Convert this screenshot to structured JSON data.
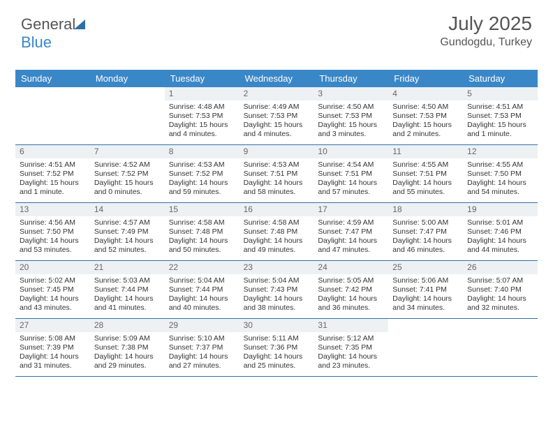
{
  "logo": {
    "text1": "General",
    "text2": "Blue"
  },
  "title": "July 2025",
  "location": "Gundogdu, Turkey",
  "colors": {
    "header_bg": "#3a87c8",
    "header_text": "#ffffff",
    "daynum_bg": "#eef1f3",
    "daynum_text": "#666666",
    "border": "#2f6fa8",
    "body_text": "#333333",
    "title_text": "#555555"
  },
  "dayNames": [
    "Sunday",
    "Monday",
    "Tuesday",
    "Wednesday",
    "Thursday",
    "Friday",
    "Saturday"
  ],
  "weeks": [
    [
      null,
      null,
      {
        "n": "1",
        "sr": "4:48 AM",
        "ss": "7:53 PM",
        "dl": "15 hours and 4 minutes."
      },
      {
        "n": "2",
        "sr": "4:49 AM",
        "ss": "7:53 PM",
        "dl": "15 hours and 4 minutes."
      },
      {
        "n": "3",
        "sr": "4:50 AM",
        "ss": "7:53 PM",
        "dl": "15 hours and 3 minutes."
      },
      {
        "n": "4",
        "sr": "4:50 AM",
        "ss": "7:53 PM",
        "dl": "15 hours and 2 minutes."
      },
      {
        "n": "5",
        "sr": "4:51 AM",
        "ss": "7:53 PM",
        "dl": "15 hours and 1 minute."
      }
    ],
    [
      {
        "n": "6",
        "sr": "4:51 AM",
        "ss": "7:52 PM",
        "dl": "15 hours and 1 minute."
      },
      {
        "n": "7",
        "sr": "4:52 AM",
        "ss": "7:52 PM",
        "dl": "15 hours and 0 minutes."
      },
      {
        "n": "8",
        "sr": "4:53 AM",
        "ss": "7:52 PM",
        "dl": "14 hours and 59 minutes."
      },
      {
        "n": "9",
        "sr": "4:53 AM",
        "ss": "7:51 PM",
        "dl": "14 hours and 58 minutes."
      },
      {
        "n": "10",
        "sr": "4:54 AM",
        "ss": "7:51 PM",
        "dl": "14 hours and 57 minutes."
      },
      {
        "n": "11",
        "sr": "4:55 AM",
        "ss": "7:51 PM",
        "dl": "14 hours and 55 minutes."
      },
      {
        "n": "12",
        "sr": "4:55 AM",
        "ss": "7:50 PM",
        "dl": "14 hours and 54 minutes."
      }
    ],
    [
      {
        "n": "13",
        "sr": "4:56 AM",
        "ss": "7:50 PM",
        "dl": "14 hours and 53 minutes."
      },
      {
        "n": "14",
        "sr": "4:57 AM",
        "ss": "7:49 PM",
        "dl": "14 hours and 52 minutes."
      },
      {
        "n": "15",
        "sr": "4:58 AM",
        "ss": "7:48 PM",
        "dl": "14 hours and 50 minutes."
      },
      {
        "n": "16",
        "sr": "4:58 AM",
        "ss": "7:48 PM",
        "dl": "14 hours and 49 minutes."
      },
      {
        "n": "17",
        "sr": "4:59 AM",
        "ss": "7:47 PM",
        "dl": "14 hours and 47 minutes."
      },
      {
        "n": "18",
        "sr": "5:00 AM",
        "ss": "7:47 PM",
        "dl": "14 hours and 46 minutes."
      },
      {
        "n": "19",
        "sr": "5:01 AM",
        "ss": "7:46 PM",
        "dl": "14 hours and 44 minutes."
      }
    ],
    [
      {
        "n": "20",
        "sr": "5:02 AM",
        "ss": "7:45 PM",
        "dl": "14 hours and 43 minutes."
      },
      {
        "n": "21",
        "sr": "5:03 AM",
        "ss": "7:44 PM",
        "dl": "14 hours and 41 minutes."
      },
      {
        "n": "22",
        "sr": "5:04 AM",
        "ss": "7:44 PM",
        "dl": "14 hours and 40 minutes."
      },
      {
        "n": "23",
        "sr": "5:04 AM",
        "ss": "7:43 PM",
        "dl": "14 hours and 38 minutes."
      },
      {
        "n": "24",
        "sr": "5:05 AM",
        "ss": "7:42 PM",
        "dl": "14 hours and 36 minutes."
      },
      {
        "n": "25",
        "sr": "5:06 AM",
        "ss": "7:41 PM",
        "dl": "14 hours and 34 minutes."
      },
      {
        "n": "26",
        "sr": "5:07 AM",
        "ss": "7:40 PM",
        "dl": "14 hours and 32 minutes."
      }
    ],
    [
      {
        "n": "27",
        "sr": "5:08 AM",
        "ss": "7:39 PM",
        "dl": "14 hours and 31 minutes."
      },
      {
        "n": "28",
        "sr": "5:09 AM",
        "ss": "7:38 PM",
        "dl": "14 hours and 29 minutes."
      },
      {
        "n": "29",
        "sr": "5:10 AM",
        "ss": "7:37 PM",
        "dl": "14 hours and 27 minutes."
      },
      {
        "n": "30",
        "sr": "5:11 AM",
        "ss": "7:36 PM",
        "dl": "14 hours and 25 minutes."
      },
      {
        "n": "31",
        "sr": "5:12 AM",
        "ss": "7:35 PM",
        "dl": "14 hours and 23 minutes."
      },
      null,
      null
    ]
  ],
  "labels": {
    "sunrise": "Sunrise:",
    "sunset": "Sunset:",
    "daylight": "Daylight:"
  }
}
